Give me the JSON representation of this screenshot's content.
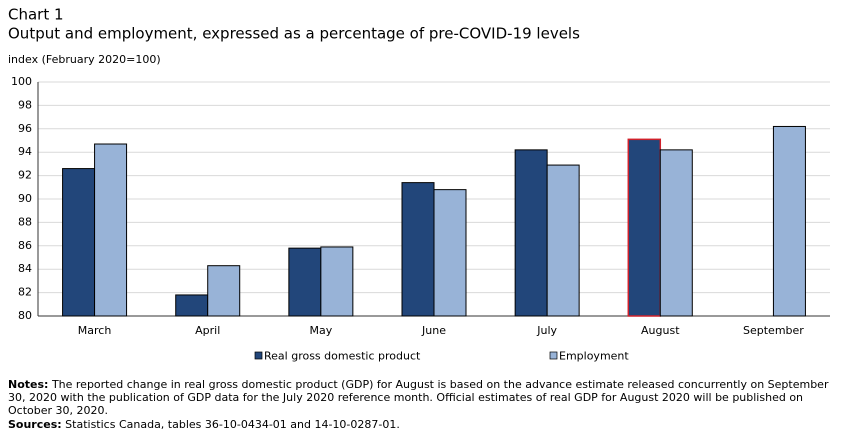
{
  "chart_data": {
    "type": "bar",
    "title": "Chart 1",
    "subtitle": "Output and employment, expressed as a percentage of pre-COVID-19 levels",
    "y_label": "index (February 2020=100)",
    "categories": [
      "March",
      "April",
      "May",
      "June",
      "July",
      "August",
      "September"
    ],
    "series": [
      {
        "name": "Real gross domestic product",
        "color": "#22467a",
        "values": [
          92.6,
          81.8,
          85.8,
          91.4,
          94.2,
          95.1,
          null
        ]
      },
      {
        "name": "Employment",
        "color": "#98b3d7",
        "values": [
          94.7,
          84.3,
          85.9,
          90.8,
          92.9,
          94.2,
          96.2
        ]
      }
    ],
    "highlight": {
      "series": 0,
      "index": 5,
      "color": "#d0202a"
    },
    "ylim": [
      80,
      100
    ],
    "yticks": [
      80,
      82,
      84,
      86,
      88,
      90,
      92,
      94,
      96,
      98,
      100
    ],
    "grid": true,
    "legend": "bottom"
  },
  "notes": {
    "label": "Notes:",
    "text": "The reported change in real gross domestic product (GDP) for August is based on the advance estimate released  concurrently on September 30, 2020 with the publication of GDP data for the July 2020 reference month. Official estimates of real GDP for August 2020 will be published on October 30, 2020."
  },
  "sources": {
    "label": "Sources:",
    "text": "Statistics Canada, tables 36-10-0434-01 and 14-10-0287-01."
  }
}
